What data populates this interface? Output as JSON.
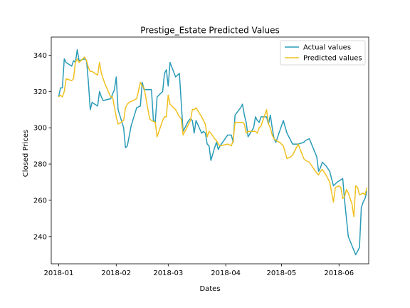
{
  "chart_data": {
    "type": "line",
    "title": "Prestige_Estate Predicted Values",
    "xlabel": "Dates",
    "ylabel": "Closed Prices",
    "x_ticks": [
      "2018-01",
      "2018-02",
      "2018-03",
      "2018-04",
      "2018-05",
      "2018-06"
    ],
    "y_ticks": [
      240,
      260,
      280,
      300,
      320,
      340
    ],
    "ylim": [
      225,
      350
    ],
    "xlim": [
      "2017-12-28",
      "2018-06-17"
    ],
    "legend_position": "upper right",
    "grid": false,
    "series": [
      {
        "name": "Actual values",
        "color": "#2a9bb7",
        "points": [
          [
            "2018-01-01",
            317
          ],
          [
            "2018-01-02",
            322
          ],
          [
            "2018-01-03",
            322
          ],
          [
            "2018-01-04",
            338
          ],
          [
            "2018-01-05",
            336
          ],
          [
            "2018-01-08",
            334
          ],
          [
            "2018-01-09",
            337
          ],
          [
            "2018-01-10",
            336
          ],
          [
            "2018-01-11",
            343
          ],
          [
            "2018-01-12",
            337
          ],
          [
            "2018-01-15",
            338
          ],
          [
            "2018-01-16",
            337
          ],
          [
            "2018-01-17",
            325
          ],
          [
            "2018-01-18",
            310
          ],
          [
            "2018-01-19",
            314
          ],
          [
            "2018-01-22",
            312
          ],
          [
            "2018-01-23",
            320
          ],
          [
            "2018-01-24",
            317
          ],
          [
            "2018-01-25",
            315
          ],
          [
            "2018-01-29",
            316
          ],
          [
            "2018-01-31",
            321
          ],
          [
            "2018-02-01",
            328
          ],
          [
            "2018-02-02",
            310
          ],
          [
            "2018-02-05",
            300
          ],
          [
            "2018-02-06",
            289
          ],
          [
            "2018-02-07",
            290
          ],
          [
            "2018-02-09",
            301
          ],
          [
            "2018-02-12",
            311
          ],
          [
            "2018-02-14",
            312
          ],
          [
            "2018-02-15",
            325
          ],
          [
            "2018-02-16",
            321
          ],
          [
            "2018-02-19",
            321
          ],
          [
            "2018-02-20",
            321
          ],
          [
            "2018-02-21",
            304
          ],
          [
            "2018-02-22",
            303
          ],
          [
            "2018-02-23",
            317
          ],
          [
            "2018-02-26",
            320
          ],
          [
            "2018-02-27",
            330
          ],
          [
            "2018-02-28",
            332
          ],
          [
            "2018-03-01",
            323
          ],
          [
            "2018-03-02",
            336
          ],
          [
            "2018-03-05",
            328
          ],
          [
            "2018-03-06",
            329
          ],
          [
            "2018-03-07",
            330
          ],
          [
            "2018-03-09",
            298
          ],
          [
            "2018-03-12",
            304
          ],
          [
            "2018-03-13",
            305
          ],
          [
            "2018-03-14",
            304
          ],
          [
            "2018-03-15",
            297
          ],
          [
            "2018-03-16",
            304
          ],
          [
            "2018-03-19",
            297
          ],
          [
            "2018-03-20",
            298
          ],
          [
            "2018-03-21",
            297
          ],
          [
            "2018-03-22",
            291
          ],
          [
            "2018-03-23",
            290
          ],
          [
            "2018-03-24",
            282
          ],
          [
            "2018-03-26",
            289
          ],
          [
            "2018-03-27",
            292
          ],
          [
            "2018-03-28",
            288
          ],
          [
            "2018-03-29",
            290
          ],
          [
            "2018-04-02",
            296
          ],
          [
            "2018-04-04",
            296
          ],
          [
            "2018-04-05",
            292
          ],
          [
            "2018-04-06",
            307
          ],
          [
            "2018-04-09",
            311
          ],
          [
            "2018-04-10",
            313
          ],
          [
            "2018-04-11",
            307
          ],
          [
            "2018-04-12",
            303
          ],
          [
            "2018-04-13",
            295
          ],
          [
            "2018-04-16",
            300
          ],
          [
            "2018-04-17",
            306
          ],
          [
            "2018-04-18",
            304
          ],
          [
            "2018-04-19",
            303
          ],
          [
            "2018-04-20",
            306
          ],
          [
            "2018-04-23",
            306
          ],
          [
            "2018-04-24",
            302
          ],
          [
            "2018-04-25",
            307
          ],
          [
            "2018-04-26",
            300
          ],
          [
            "2018-04-27",
            294
          ],
          [
            "2018-04-28",
            292
          ],
          [
            "2018-04-30",
            298
          ],
          [
            "2018-05-02",
            304
          ],
          [
            "2018-05-04",
            297
          ],
          [
            "2018-05-06",
            293
          ],
          [
            "2018-05-07",
            291
          ],
          [
            "2018-05-10",
            291
          ],
          [
            "2018-05-13",
            292
          ],
          [
            "2018-05-14",
            293
          ],
          [
            "2018-05-16",
            294
          ],
          [
            "2018-05-18",
            289
          ],
          [
            "2018-05-20",
            284
          ],
          [
            "2018-05-21",
            276
          ],
          [
            "2018-05-22",
            278
          ],
          [
            "2018-05-23",
            281
          ],
          [
            "2018-05-25",
            279
          ],
          [
            "2018-05-27",
            276
          ],
          [
            "2018-05-29",
            268
          ],
          [
            "2018-05-31",
            270
          ],
          [
            "2018-06-03",
            272
          ],
          [
            "2018-06-04",
            260
          ],
          [
            "2018-06-05",
            250
          ],
          [
            "2018-06-06",
            240
          ],
          [
            "2018-06-08",
            235
          ],
          [
            "2018-06-10",
            230
          ],
          [
            "2018-06-11",
            232
          ],
          [
            "2018-06-12",
            234
          ],
          [
            "2018-06-13",
            256
          ],
          [
            "2018-06-14",
            259
          ],
          [
            "2018-06-15",
            261
          ],
          [
            "2018-06-16",
            265
          ]
        ]
      },
      {
        "name": "Predicted values",
        "color": "#f0c020",
        "points": [
          [
            "2018-01-01",
            317
          ],
          [
            "2018-01-02",
            318
          ],
          [
            "2018-01-03",
            317
          ],
          [
            "2018-01-04",
            320
          ],
          [
            "2018-01-05",
            327
          ],
          [
            "2018-01-08",
            326
          ],
          [
            "2018-01-09",
            327
          ],
          [
            "2018-01-10",
            336
          ],
          [
            "2018-01-11",
            338
          ],
          [
            "2018-01-12",
            336
          ],
          [
            "2018-01-14",
            338
          ],
          [
            "2018-01-15",
            339
          ],
          [
            "2018-01-16",
            337
          ],
          [
            "2018-01-17",
            333
          ],
          [
            "2018-01-18",
            331
          ],
          [
            "2018-01-19",
            331
          ],
          [
            "2018-01-22",
            329
          ],
          [
            "2018-01-23",
            336
          ],
          [
            "2018-01-24",
            330
          ],
          [
            "2018-01-26",
            324
          ],
          [
            "2018-01-29",
            317
          ],
          [
            "2018-01-30",
            317
          ],
          [
            "2018-02-01",
            306
          ],
          [
            "2018-02-02",
            302
          ],
          [
            "2018-02-05",
            304
          ],
          [
            "2018-02-06",
            311
          ],
          [
            "2018-02-07",
            313
          ],
          [
            "2018-02-08",
            314
          ],
          [
            "2018-02-12",
            316
          ],
          [
            "2018-02-14",
            325
          ],
          [
            "2018-02-15",
            323
          ],
          [
            "2018-02-16",
            322
          ],
          [
            "2018-02-19",
            305
          ],
          [
            "2018-02-20",
            304
          ],
          [
            "2018-02-22",
            303
          ],
          [
            "2018-02-23",
            295
          ],
          [
            "2018-02-26",
            304
          ],
          [
            "2018-02-27",
            306
          ],
          [
            "2018-02-28",
            306
          ],
          [
            "2018-03-01",
            318
          ],
          [
            "2018-03-02",
            313
          ],
          [
            "2018-03-05",
            310
          ],
          [
            "2018-03-07",
            306
          ],
          [
            "2018-03-08",
            305
          ],
          [
            "2018-03-09",
            296
          ],
          [
            "2018-03-12",
            302
          ],
          [
            "2018-03-13",
            304
          ],
          [
            "2018-03-14",
            310
          ],
          [
            "2018-03-15",
            310
          ],
          [
            "2018-03-16",
            311
          ],
          [
            "2018-03-19",
            306
          ],
          [
            "2018-03-20",
            304
          ],
          [
            "2018-03-21",
            302
          ],
          [
            "2018-03-22",
            295
          ],
          [
            "2018-03-23",
            298
          ],
          [
            "2018-03-24",
            297
          ],
          [
            "2018-03-26",
            294
          ],
          [
            "2018-03-27",
            293
          ],
          [
            "2018-03-28",
            291
          ],
          [
            "2018-03-29",
            290
          ],
          [
            "2018-04-02",
            291
          ],
          [
            "2018-04-04",
            290
          ],
          [
            "2018-04-05",
            293
          ],
          [
            "2018-04-06",
            303
          ],
          [
            "2018-04-09",
            303
          ],
          [
            "2018-04-10",
            303
          ],
          [
            "2018-04-11",
            302
          ],
          [
            "2018-04-12",
            297
          ],
          [
            "2018-04-13",
            298
          ],
          [
            "2018-04-16",
            298
          ],
          [
            "2018-04-17",
            298
          ],
          [
            "2018-04-18",
            297
          ],
          [
            "2018-04-19",
            300
          ],
          [
            "2018-04-20",
            301
          ],
          [
            "2018-04-23",
            310
          ],
          [
            "2018-04-24",
            302
          ],
          [
            "2018-04-25",
            300
          ],
          [
            "2018-04-26",
            296
          ],
          [
            "2018-04-27",
            294
          ],
          [
            "2018-04-28",
            293
          ],
          [
            "2018-04-30",
            292
          ],
          [
            "2018-05-02",
            290
          ],
          [
            "2018-05-04",
            283
          ],
          [
            "2018-05-06",
            284
          ],
          [
            "2018-05-07",
            285
          ],
          [
            "2018-05-10",
            291
          ],
          [
            "2018-05-13",
            283
          ],
          [
            "2018-05-14",
            282
          ],
          [
            "2018-05-16",
            281
          ],
          [
            "2018-05-18",
            278
          ],
          [
            "2018-05-20",
            275
          ],
          [
            "2018-05-21",
            274
          ],
          [
            "2018-05-22",
            276
          ],
          [
            "2018-05-23",
            277
          ],
          [
            "2018-05-25",
            274
          ],
          [
            "2018-05-27",
            270
          ],
          [
            "2018-05-29",
            259
          ],
          [
            "2018-05-30",
            267
          ],
          [
            "2018-06-01",
            268
          ],
          [
            "2018-06-02",
            267
          ],
          [
            "2018-06-03",
            261
          ],
          [
            "2018-06-04",
            262
          ],
          [
            "2018-06-05",
            266
          ],
          [
            "2018-06-06",
            264
          ],
          [
            "2018-06-08",
            258
          ],
          [
            "2018-06-09",
            251
          ],
          [
            "2018-06-10",
            268
          ],
          [
            "2018-06-11",
            267
          ],
          [
            "2018-06-12",
            263
          ],
          [
            "2018-06-14",
            264
          ],
          [
            "2018-06-15",
            263
          ],
          [
            "2018-06-16",
            267
          ]
        ]
      }
    ]
  }
}
